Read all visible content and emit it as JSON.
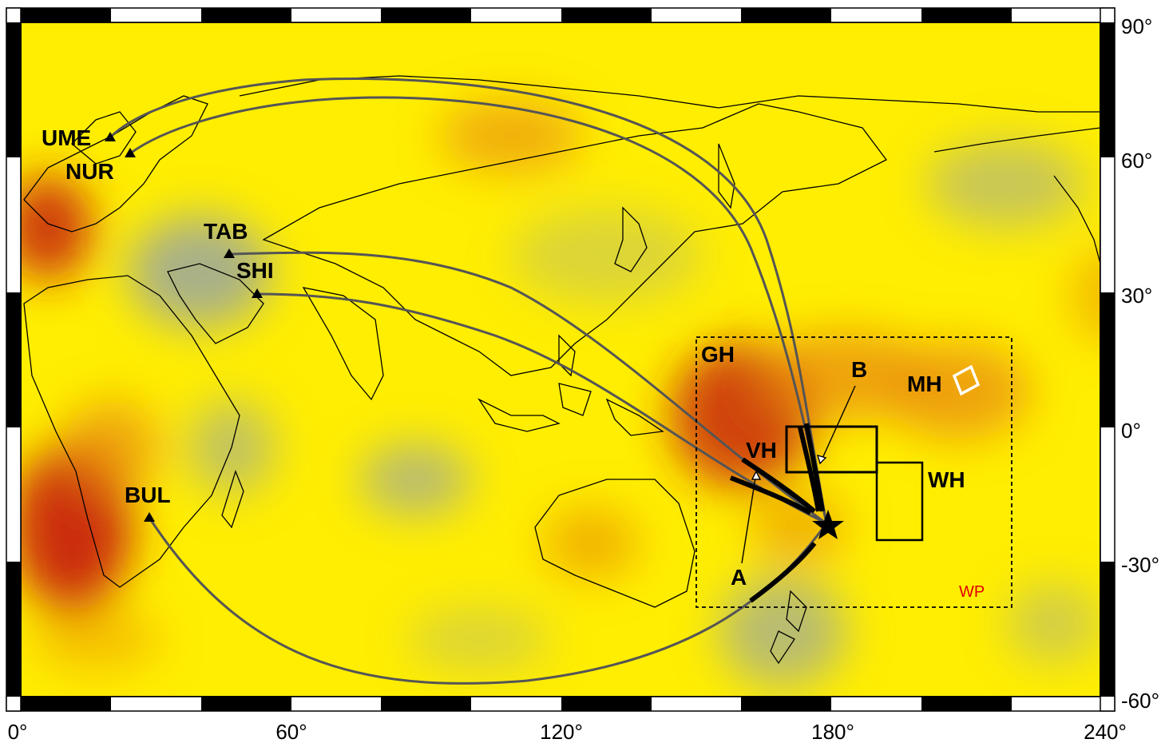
{
  "axes": {
    "x_ticks": [
      "0°",
      "60°",
      "120°",
      "180°",
      "240°"
    ],
    "y_ticks": [
      "90°",
      "60°",
      "30°",
      "0°",
      "-30°",
      "-60°"
    ]
  },
  "stations": [
    {
      "id": "UME",
      "label": "UME"
    },
    {
      "id": "NUR",
      "label": "NUR"
    },
    {
      "id": "TAB",
      "label": "TAB"
    },
    {
      "id": "SHI",
      "label": "SHI"
    },
    {
      "id": "BUL",
      "label": "BUL"
    }
  ],
  "regions": {
    "gh": "GH",
    "vh": "VH",
    "wh": "WH",
    "mh": "MH",
    "wp": "WP",
    "a": "A",
    "b": "B"
  },
  "colors": {
    "background": "#ffee00",
    "hot": "#c8250a",
    "warm": "#e88a0a",
    "cool": "#9aa6a0",
    "path": "#555555",
    "wp_label": "#e00000"
  }
}
